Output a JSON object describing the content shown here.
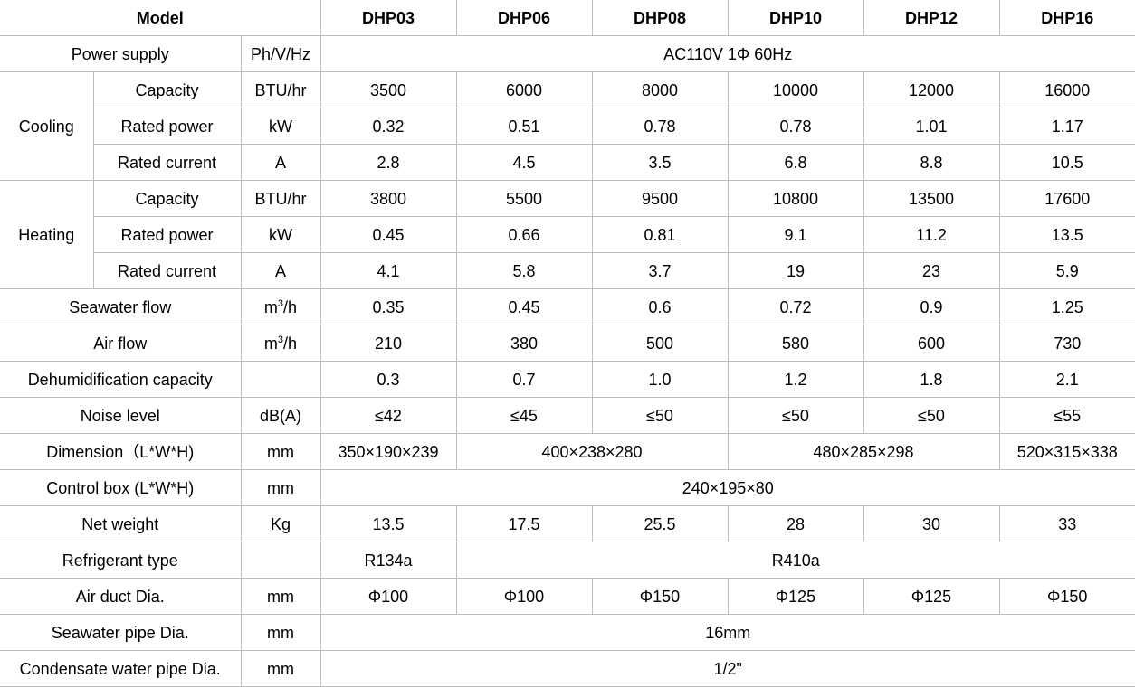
{
  "header": {
    "label": "Model",
    "models": [
      "DHP03",
      "DHP06",
      "DHP08",
      "DHP10",
      "DHP12",
      "DHP16"
    ]
  },
  "power_supply": {
    "label": "Power supply",
    "unit": "Ph/V/Hz",
    "value": "AC110V 1Φ 60Hz"
  },
  "cooling": {
    "group": "Cooling",
    "rows": [
      {
        "label": "Capacity",
        "unit": "BTU/hr",
        "values": [
          "3500",
          "6000",
          "8000",
          "10000",
          "12000",
          "16000"
        ]
      },
      {
        "label": "Rated power",
        "unit": "kW",
        "values": [
          "0.32",
          "0.51",
          "0.78",
          "0.78",
          "1.01",
          "1.17"
        ]
      },
      {
        "label": "Rated current",
        "unit": "A",
        "values": [
          "2.8",
          "4.5",
          "3.5",
          "6.8",
          "8.8",
          "10.5"
        ]
      }
    ]
  },
  "heating": {
    "group": "Heating",
    "rows": [
      {
        "label": "Capacity",
        "unit": "BTU/hr",
        "values": [
          "3800",
          "5500",
          "9500",
          "10800",
          "13500",
          "17600"
        ]
      },
      {
        "label": "Rated power",
        "unit": "kW",
        "values": [
          "0.45",
          "0.66",
          "0.81",
          "9.1",
          "11.2",
          "13.5"
        ]
      },
      {
        "label": "Rated current",
        "unit": "A",
        "values": [
          "4.1",
          "5.8",
          "3.7",
          "19",
          "23",
          "5.9"
        ]
      }
    ]
  },
  "seawater_flow": {
    "label": "Seawater flow",
    "unit_base": "m",
    "unit_exp": "3",
    "unit_tail": "/h",
    "values": [
      "0.35",
      "0.45",
      "0.6",
      "0.72",
      "0.9",
      "1.25"
    ]
  },
  "air_flow": {
    "label": "Air flow",
    "unit_base": "m",
    "unit_exp": "3",
    "unit_tail": "/h",
    "values": [
      "210",
      "380",
      "500",
      "580",
      "600",
      "730"
    ]
  },
  "dehumidification": {
    "label": "Dehumidification capacity",
    "unit": "",
    "values": [
      "0.3",
      "0.7",
      "1.0",
      "1.2",
      "1.8",
      "2.1"
    ]
  },
  "noise": {
    "label": "Noise level",
    "unit": "dB(A)",
    "values": [
      "≤42",
      "≤45",
      "≤50",
      "≤50",
      "≤50",
      "≤55"
    ]
  },
  "dimension": {
    "label": "Dimension（L*W*H)",
    "unit": "mm",
    "dhp03": "350×190×239",
    "dhp06_08": "400×238×280",
    "dhp10_12": "480×285×298",
    "dhp16": "520×315×338"
  },
  "control_box": {
    "label": "Control box (L*W*H)",
    "unit": "mm",
    "value": "240×195×80"
  },
  "net_weight": {
    "label": "Net weight",
    "unit": "Kg",
    "values": [
      "13.5",
      "17.5",
      "25.5",
      "28",
      "30",
      "33"
    ]
  },
  "refrigerant": {
    "label": "Refrigerant type",
    "unit": "",
    "dhp03": "R134a",
    "others": "R410a"
  },
  "air_duct": {
    "label": "Air duct Dia.",
    "unit": "mm",
    "values": [
      "Φ100",
      "Φ100",
      "Φ150",
      "Φ125",
      "Φ125",
      "Φ150"
    ]
  },
  "seawater_pipe": {
    "label": "Seawater pipe Dia.",
    "unit": "mm",
    "value": "16mm"
  },
  "condensate_pipe": {
    "label": "Condensate water pipe Dia.",
    "unit": "mm",
    "value": "1/2\""
  }
}
